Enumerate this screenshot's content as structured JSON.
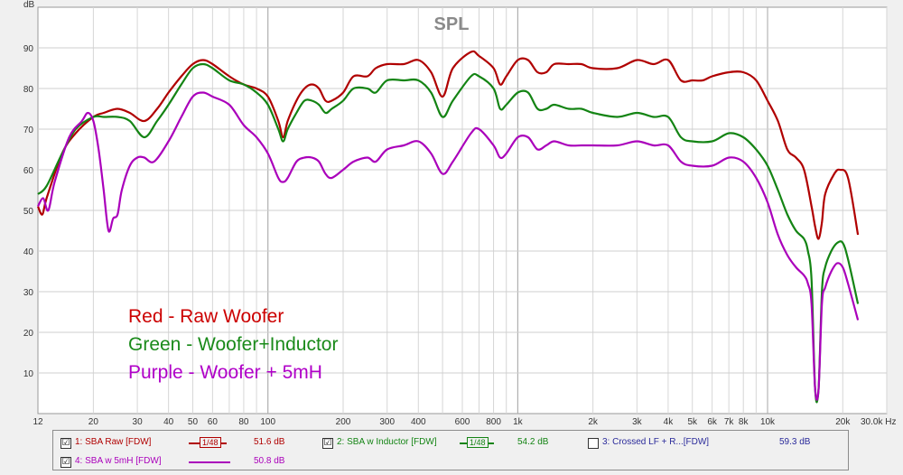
{
  "chart_data": {
    "type": "line",
    "title": "SPL",
    "ylabel": "dB",
    "xunit": "Hz",
    "xscale": "log",
    "xlim": [
      12,
      30000
    ],
    "ylim": [
      0,
      100
    ],
    "grid": true,
    "yticks": [
      10,
      20,
      30,
      40,
      50,
      60,
      70,
      80,
      90
    ],
    "xticks": [
      {
        "v": 12,
        "label": "12"
      },
      {
        "v": 20,
        "label": "20"
      },
      {
        "v": 30,
        "label": "30"
      },
      {
        "v": 40,
        "label": "40"
      },
      {
        "v": 50,
        "label": "50"
      },
      {
        "v": 60,
        "label": "60"
      },
      {
        "v": 80,
        "label": "80"
      },
      {
        "v": 100,
        "label": "100"
      },
      {
        "v": 200,
        "label": "200"
      },
      {
        "v": 300,
        "label": "300"
      },
      {
        "v": 400,
        "label": "400"
      },
      {
        "v": 600,
        "label": "600"
      },
      {
        "v": 800,
        "label": "800"
      },
      {
        "v": 1000,
        "label": "1k"
      },
      {
        "v": 2000,
        "label": "2k"
      },
      {
        "v": 3000,
        "label": "3k"
      },
      {
        "v": 4000,
        "label": "4k"
      },
      {
        "v": 5000,
        "label": "5k"
      },
      {
        "v": 6000,
        "label": "6k"
      },
      {
        "v": 7000,
        "label": "7k"
      },
      {
        "v": 8000,
        "label": "8k"
      },
      {
        "v": 10000,
        "label": "10k"
      },
      {
        "v": 20000,
        "label": "20k"
      },
      {
        "v": 30000,
        "label": "30.0k Hz"
      }
    ],
    "annotations": [
      {
        "text": "Red - Raw Woofer",
        "color": "#cc0000"
      },
      {
        "text": "Green - Woofer+Inductor",
        "color": "#1a8a1a"
      },
      {
        "text": "Purple - Woofer + 5mH",
        "color": "#b000c8"
      }
    ],
    "series": [
      {
        "name": "1: SBA Raw [FDW]",
        "color": "#b00000",
        "points": [
          [
            12,
            51
          ],
          [
            12.5,
            49
          ],
          [
            13,
            53
          ],
          [
            15,
            64
          ],
          [
            17,
            69
          ],
          [
            20,
            73
          ],
          [
            22,
            74
          ],
          [
            25,
            75
          ],
          [
            28,
            74
          ],
          [
            32,
            72
          ],
          [
            36,
            75
          ],
          [
            40,
            79
          ],
          [
            45,
            83
          ],
          [
            50,
            86
          ],
          [
            55,
            87
          ],
          [
            60,
            86
          ],
          [
            70,
            83
          ],
          [
            80,
            81
          ],
          [
            90,
            80
          ],
          [
            100,
            78
          ],
          [
            110,
            72
          ],
          [
            115,
            68
          ],
          [
            120,
            72
          ],
          [
            130,
            77
          ],
          [
            140,
            80
          ],
          [
            150,
            81
          ],
          [
            160,
            80
          ],
          [
            170,
            77
          ],
          [
            180,
            77
          ],
          [
            200,
            79
          ],
          [
            220,
            83
          ],
          [
            250,
            83
          ],
          [
            270,
            85
          ],
          [
            300,
            86
          ],
          [
            350,
            86
          ],
          [
            400,
            87
          ],
          [
            450,
            84
          ],
          [
            500,
            78
          ],
          [
            550,
            85
          ],
          [
            650,
            89
          ],
          [
            700,
            88
          ],
          [
            800,
            85
          ],
          [
            850,
            81
          ],
          [
            900,
            83
          ],
          [
            1000,
            87
          ],
          [
            1100,
            87
          ],
          [
            1200,
            84
          ],
          [
            1300,
            84
          ],
          [
            1400,
            86
          ],
          [
            1600,
            86
          ],
          [
            1800,
            86
          ],
          [
            2000,
            85
          ],
          [
            2500,
            85
          ],
          [
            3000,
            87
          ],
          [
            3500,
            86
          ],
          [
            4000,
            87
          ],
          [
            4500,
            82
          ],
          [
            5000,
            82
          ],
          [
            5500,
            82
          ],
          [
            6000,
            83
          ],
          [
            7000,
            84
          ],
          [
            8000,
            84
          ],
          [
            9000,
            82
          ],
          [
            10000,
            77
          ],
          [
            11000,
            72
          ],
          [
            12000,
            65
          ],
          [
            13000,
            63
          ],
          [
            14000,
            60
          ],
          [
            15000,
            51
          ],
          [
            15500,
            46
          ],
          [
            16000,
            43
          ],
          [
            16500,
            47
          ],
          [
            17000,
            54
          ],
          [
            18500,
            59
          ],
          [
            19500,
            60
          ],
          [
            21000,
            58
          ],
          [
            23000,
            44
          ]
        ]
      },
      {
        "name": "2: SBA w Inductor [FDW]",
        "color": "#148414",
        "points": [
          [
            12,
            54
          ],
          [
            13,
            56
          ],
          [
            15,
            64
          ],
          [
            17,
            70
          ],
          [
            20,
            73
          ],
          [
            22,
            73
          ],
          [
            25,
            73
          ],
          [
            28,
            72
          ],
          [
            32,
            68
          ],
          [
            36,
            72
          ],
          [
            40,
            76
          ],
          [
            45,
            81
          ],
          [
            50,
            85
          ],
          [
            55,
            86
          ],
          [
            60,
            85
          ],
          [
            70,
            82
          ],
          [
            80,
            81
          ],
          [
            90,
            79
          ],
          [
            100,
            76
          ],
          [
            110,
            70
          ],
          [
            115,
            67
          ],
          [
            120,
            70
          ],
          [
            130,
            74
          ],
          [
            140,
            77
          ],
          [
            150,
            77
          ],
          [
            160,
            76
          ],
          [
            170,
            74
          ],
          [
            180,
            75
          ],
          [
            200,
            77
          ],
          [
            220,
            80
          ],
          [
            250,
            80
          ],
          [
            270,
            79
          ],
          [
            300,
            82
          ],
          [
            350,
            82
          ],
          [
            400,
            82
          ],
          [
            450,
            79
          ],
          [
            500,
            73
          ],
          [
            550,
            77
          ],
          [
            650,
            83
          ],
          [
            700,
            83
          ],
          [
            800,
            80
          ],
          [
            850,
            75
          ],
          [
            900,
            76
          ],
          [
            1000,
            79
          ],
          [
            1100,
            79
          ],
          [
            1200,
            75
          ],
          [
            1300,
            75
          ],
          [
            1400,
            76
          ],
          [
            1600,
            75
          ],
          [
            1800,
            75
          ],
          [
            2000,
            74
          ],
          [
            2500,
            73
          ],
          [
            3000,
            74
          ],
          [
            3500,
            73
          ],
          [
            4000,
            73
          ],
          [
            4500,
            68
          ],
          [
            5000,
            67
          ],
          [
            6000,
            67
          ],
          [
            7000,
            69
          ],
          [
            8000,
            68
          ],
          [
            9000,
            65
          ],
          [
            10000,
            61
          ],
          [
            11000,
            55
          ],
          [
            12000,
            49
          ],
          [
            13000,
            45
          ],
          [
            14000,
            43
          ],
          [
            14500,
            40
          ],
          [
            15000,
            33
          ],
          [
            15500,
            6
          ],
          [
            16000,
            6
          ],
          [
            16500,
            30
          ],
          [
            17000,
            36
          ],
          [
            18000,
            40
          ],
          [
            19000,
            42
          ],
          [
            20000,
            42
          ],
          [
            21000,
            38
          ],
          [
            23000,
            27
          ]
        ]
      },
      {
        "name": "4: SBA w 5mH [FDW]",
        "color": "#aa00bb",
        "points": [
          [
            12,
            51
          ],
          [
            12.6,
            53
          ],
          [
            13.2,
            50
          ],
          [
            14,
            57
          ],
          [
            16,
            68
          ],
          [
            18,
            72
          ],
          [
            19,
            74
          ],
          [
            20,
            72
          ],
          [
            21,
            65
          ],
          [
            22,
            55
          ],
          [
            23,
            45
          ],
          [
            24,
            48
          ],
          [
            25,
            49
          ],
          [
            26,
            55
          ],
          [
            28,
            61
          ],
          [
            30,
            63
          ],
          [
            32,
            63
          ],
          [
            35,
            62
          ],
          [
            40,
            67
          ],
          [
            45,
            73
          ],
          [
            50,
            78
          ],
          [
            55,
            79
          ],
          [
            60,
            78
          ],
          [
            70,
            76
          ],
          [
            80,
            71
          ],
          [
            90,
            68
          ],
          [
            100,
            64
          ],
          [
            110,
            58
          ],
          [
            115,
            57
          ],
          [
            120,
            58
          ],
          [
            130,
            62
          ],
          [
            140,
            63
          ],
          [
            150,
            63
          ],
          [
            160,
            62
          ],
          [
            170,
            59
          ],
          [
            180,
            58
          ],
          [
            200,
            60
          ],
          [
            220,
            62
          ],
          [
            250,
            63
          ],
          [
            270,
            62
          ],
          [
            300,
            65
          ],
          [
            350,
            66
          ],
          [
            400,
            67
          ],
          [
            450,
            64
          ],
          [
            500,
            59
          ],
          [
            550,
            62
          ],
          [
            650,
            69
          ],
          [
            700,
            70
          ],
          [
            800,
            66
          ],
          [
            850,
            63
          ],
          [
            900,
            64
          ],
          [
            1000,
            68
          ],
          [
            1100,
            68
          ],
          [
            1200,
            65
          ],
          [
            1300,
            66
          ],
          [
            1400,
            67
          ],
          [
            1600,
            66
          ],
          [
            1800,
            66
          ],
          [
            2000,
            66
          ],
          [
            2500,
            66
          ],
          [
            3000,
            67
          ],
          [
            3500,
            66
          ],
          [
            4000,
            66
          ],
          [
            4500,
            62
          ],
          [
            5000,
            61
          ],
          [
            6000,
            61
          ],
          [
            7000,
            63
          ],
          [
            8000,
            62
          ],
          [
            9000,
            58
          ],
          [
            10000,
            52
          ],
          [
            11000,
            44
          ],
          [
            12000,
            39
          ],
          [
            13000,
            36
          ],
          [
            14000,
            34
          ],
          [
            14500,
            32
          ],
          [
            15000,
            27
          ],
          [
            15500,
            6
          ],
          [
            16000,
            6
          ],
          [
            16500,
            27
          ],
          [
            17000,
            31
          ],
          [
            18000,
            35
          ],
          [
            19000,
            37
          ],
          [
            20000,
            36
          ],
          [
            21000,
            32
          ],
          [
            23000,
            23
          ]
        ]
      }
    ]
  },
  "legend": [
    {
      "name": "1: SBA Raw [FDW]",
      "checked": "☑",
      "smoothing": "1/48",
      "value": "51.6 dB",
      "color": "#b00000"
    },
    {
      "name": "2: SBA w Inductor [FDW]",
      "checked": "☑",
      "smoothing": "1/48",
      "value": "54.2 dB",
      "color": "#148414"
    },
    {
      "name": "3: Crossed LF + R...[FDW]",
      "checked": "",
      "value": "59.3 dB",
      "color": "#2a2a9a"
    },
    {
      "name": "4: SBA w 5mH [FDW]",
      "checked": "☑",
      "value": "50.8 dB",
      "color": "#aa00bb"
    }
  ]
}
